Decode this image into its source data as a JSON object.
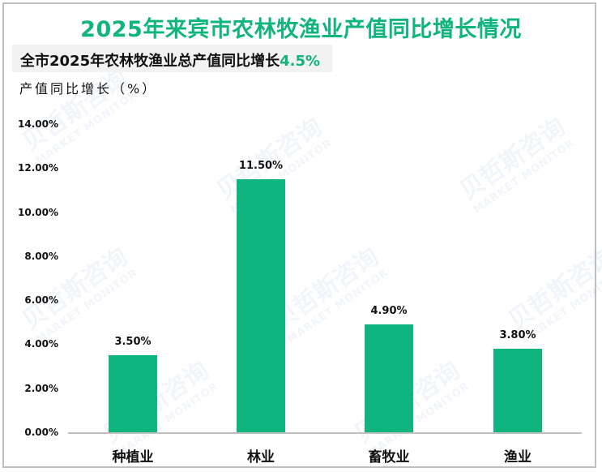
{
  "title": "2025年来宾市农林牧渔业产值同比增长情况",
  "subtitle": {
    "prefix": "全市2025年农林牧渔业总产值同比增长",
    "highlight": "4.5%"
  },
  "unit_label": "产值同比增长（%）",
  "colors": {
    "accent": "#0fb47f",
    "bar": "#0fb47f",
    "axis": "#bfbfbf",
    "subtitle_bg": "#f2f2f2"
  },
  "watermark": {
    "cn": "贝哲斯咨询",
    "en": "MARKET MONITOR"
  },
  "y_ticks": [
    "14.00%",
    "12.00%",
    "10.00%",
    "8.00%",
    "6.00%",
    "4.00%",
    "2.00%",
    "0.00%"
  ],
  "chart_data": {
    "type": "bar",
    "title": "2025年来宾市农林牧渔业产值同比增长情况",
    "subtitle": "全市2025年农林牧渔业总产值同比增长4.5%",
    "xlabel": "",
    "ylabel": "产值同比增长（%）",
    "categories": [
      "种植业",
      "林业",
      "畜牧业",
      "渔业"
    ],
    "values": [
      3.5,
      11.5,
      4.9,
      3.8
    ],
    "value_labels": [
      "3.50%",
      "11.50%",
      "4.90%",
      "3.80%"
    ],
    "ylim": [
      0,
      14
    ],
    "ytick_step": 2,
    "grid": false,
    "legend": "none"
  }
}
